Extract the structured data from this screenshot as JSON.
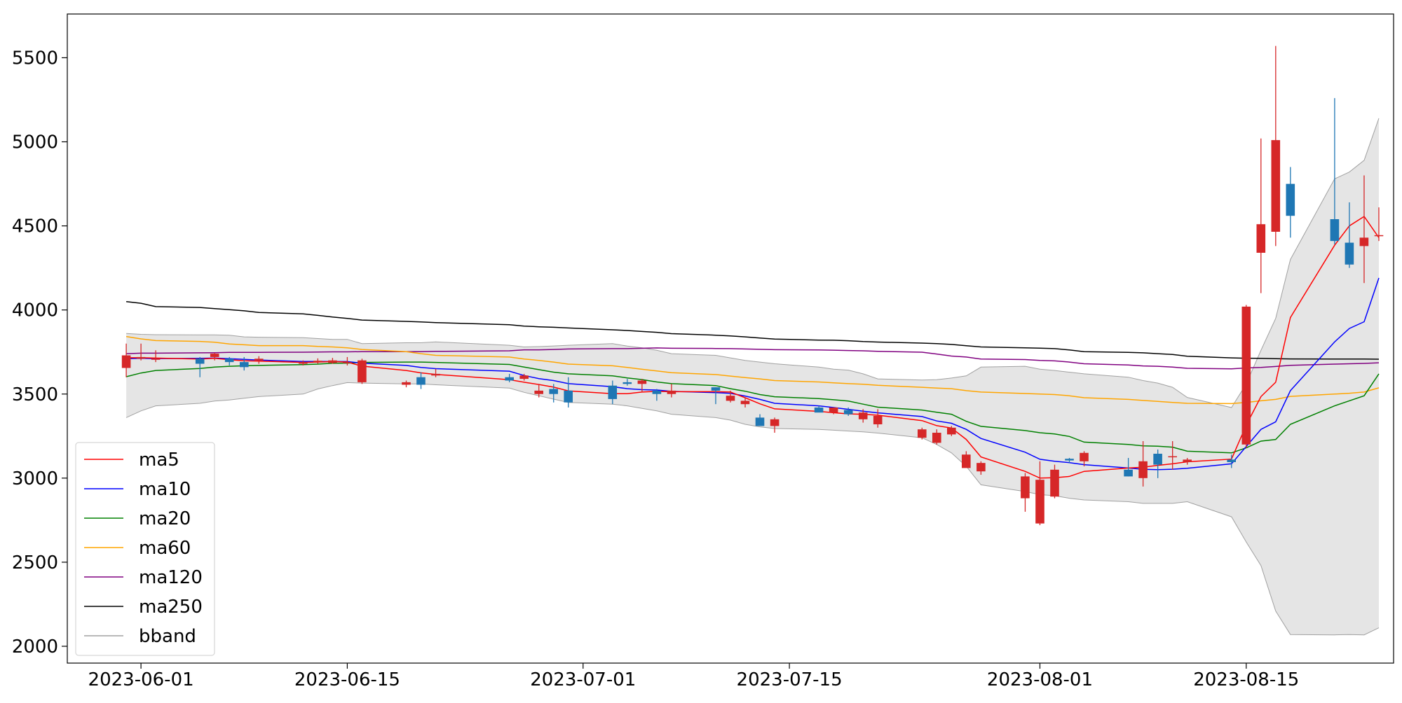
{
  "chart_data": {
    "type": "candlestick",
    "title": "",
    "xlabel": "",
    "ylabel": "",
    "x_ticks": [
      "2023-06-01",
      "2023-06-15",
      "2023-07-01",
      "2023-07-15",
      "2023-08-01",
      "2023-08-15"
    ],
    "y_ticks": [
      2000,
      2500,
      3000,
      3500,
      4000,
      4500,
      5000,
      5500
    ],
    "ylim": [
      1900,
      5760
    ],
    "xlim": [
      "2023-05-27",
      "2023-08-25"
    ],
    "grid": false,
    "legend_position": "bottom-left",
    "colors": {
      "up": "#d62728",
      "down": "#1f77b4",
      "ma5": "#ff0000",
      "ma10": "#0000ff",
      "ma20": "#008000",
      "ma60": "#ffa500",
      "ma120": "#800080",
      "ma250": "#000000",
      "bband": "#a0a0a0",
      "band_fill": "#e5e5e5"
    },
    "legend": [
      {
        "key": "ma5",
        "label": "ma5"
      },
      {
        "key": "ma10",
        "label": "ma10"
      },
      {
        "key": "ma20",
        "label": "ma20"
      },
      {
        "key": "ma60",
        "label": "ma60"
      },
      {
        "key": "ma120",
        "label": "ma120"
      },
      {
        "key": "ma250",
        "label": "ma250"
      },
      {
        "key": "bband",
        "label": "bband"
      }
    ],
    "dates": [
      "2023-05-31",
      "2023-06-01",
      "2023-06-02",
      "2023-06-05",
      "2023-06-06",
      "2023-06-07",
      "2023-06-08",
      "2023-06-09",
      "2023-06-12",
      "2023-06-13",
      "2023-06-14",
      "2023-06-15",
      "2023-06-16",
      "2023-06-19",
      "2023-06-20",
      "2023-06-21",
      "2023-06-26",
      "2023-06-27",
      "2023-06-28",
      "2023-06-29",
      "2023-06-30",
      "2023-07-03",
      "2023-07-04",
      "2023-07-05",
      "2023-07-06",
      "2023-07-07",
      "2023-07-10",
      "2023-07-11",
      "2023-07-12",
      "2023-07-13",
      "2023-07-14",
      "2023-07-17",
      "2023-07-18",
      "2023-07-19",
      "2023-07-20",
      "2023-07-21",
      "2023-07-24",
      "2023-07-25",
      "2023-07-26",
      "2023-07-27",
      "2023-07-28",
      "2023-07-31",
      "2023-08-01",
      "2023-08-02",
      "2023-08-03",
      "2023-08-04",
      "2023-08-07",
      "2023-08-08",
      "2023-08-09",
      "2023-08-10",
      "2023-08-11",
      "2023-08-14",
      "2023-08-15",
      "2023-08-16",
      "2023-08-17",
      "2023-08-18",
      "2023-08-21",
      "2023-08-22",
      "2023-08-23",
      "2023-08-24"
    ],
    "open": [
      3655,
      3710,
      3710,
      3710,
      3720,
      3710,
      3690,
      3700,
      3680,
      3688,
      3685,
      3690,
      3570,
      3555,
      3600,
      3610,
      3600,
      3590,
      3500,
      3530,
      3520,
      3550,
      3570,
      3560,
      3520,
      3500,
      3540,
      3460,
      3440,
      3360,
      3310,
      3420,
      3390,
      3405,
      3350,
      3320,
      3240,
      3210,
      3260,
      3060,
      3040,
      2880,
      2730,
      2890,
      3115,
      3100,
      3050,
      3000,
      3145,
      3130,
      3095,
      3110,
      3200,
      4340,
      4465,
      4750,
      4540,
      4400,
      4380,
      4440
    ],
    "close": [
      3730,
      3720,
      3710,
      3680,
      3740,
      3690,
      3660,
      3710,
      3690,
      3698,
      3700,
      3690,
      3700,
      3570,
      3555,
      3620,
      3580,
      3610,
      3520,
      3500,
      3450,
      3470,
      3560,
      3580,
      3500,
      3520,
      3520,
      3490,
      3460,
      3310,
      3350,
      3390,
      3420,
      3380,
      3390,
      3370,
      3290,
      3270,
      3300,
      3140,
      3090,
      3010,
      2990,
      3050,
      3105,
      3150,
      3010,
      3100,
      3080,
      3130,
      3110,
      3095,
      4020,
      4510,
      5010,
      4560,
      4410,
      4270,
      4430,
      4445
    ],
    "high": [
      3800,
      3800,
      3760,
      3720,
      3745,
      3720,
      3720,
      3725,
      3700,
      3712,
      3715,
      3720,
      3710,
      3580,
      3630,
      3650,
      3620,
      3620,
      3560,
      3560,
      3600,
      3580,
      3590,
      3590,
      3530,
      3560,
      3540,
      3520,
      3480,
      3380,
      3360,
      3430,
      3420,
      3420,
      3410,
      3410,
      3300,
      3290,
      3310,
      3160,
      3100,
      3030,
      3100,
      3080,
      3120,
      3160,
      3120,
      3220,
      3170,
      3220,
      3120,
      3140,
      4030,
      5020,
      5570,
      4850,
      5260,
      4640,
      4800,
      4610
    ],
    "low": [
      3600,
      3700,
      3690,
      3600,
      3700,
      3670,
      3640,
      3680,
      3670,
      3680,
      3680,
      3670,
      3560,
      3540,
      3530,
      3600,
      3570,
      3580,
      3480,
      3450,
      3420,
      3440,
      3550,
      3510,
      3460,
      3480,
      3440,
      3450,
      3420,
      3320,
      3270,
      3400,
      3380,
      3370,
      3330,
      3300,
      3230,
      3200,
      3250,
      3080,
      3020,
      2800,
      2720,
      2880,
      3090,
      3070,
      3010,
      2950,
      3000,
      3050,
      3080,
      3060,
      3180,
      4100,
      4380,
      4430,
      4390,
      4250,
      4160,
      4410
    ],
    "ma5": [
      3716,
      3716,
      3714,
      3708,
      3712,
      3704,
      3698,
      3696,
      3688,
      3690,
      3694,
      3690,
      3666,
      3640,
      3626,
      3617,
      3585,
      3570,
      3557,
      3541,
      3519,
      3502,
      3502,
      3512,
      3516,
      3514,
      3514,
      3512,
      3478,
      3442,
      3412,
      3397,
      3389,
      3382,
      3380,
      3374,
      3342,
      3312,
      3298,
      3230,
      3126,
      3040,
      3000,
      3002,
      3010,
      3040,
      3060,
      3065,
      3076,
      3085,
      3097,
      3113,
      3315,
      3485,
      3570,
      3955,
      4385,
      4500,
      4556,
      4430
    ],
    "ma10": [
      3710,
      3712,
      3711,
      3712,
      3714,
      3710,
      3706,
      3702,
      3694,
      3694,
      3694,
      3693,
      3684,
      3670,
      3658,
      3651,
      3636,
      3610,
      3592,
      3580,
      3562,
      3544,
      3532,
      3526,
      3524,
      3516,
      3508,
      3504,
      3488,
      3468,
      3445,
      3430,
      3420,
      3409,
      3398,
      3388,
      3366,
      3340,
      3326,
      3290,
      3236,
      3154,
      3112,
      3100,
      3092,
      3080,
      3060,
      3052,
      3050,
      3053,
      3059,
      3085,
      3188,
      3290,
      3335,
      3520,
      3810,
      3890,
      3930,
      4190
    ],
    "ma20": [
      3603,
      3625,
      3640,
      3652,
      3660,
      3665,
      3668,
      3670,
      3675,
      3678,
      3683,
      3684,
      3688,
      3690,
      3690,
      3688,
      3676,
      3660,
      3645,
      3630,
      3620,
      3608,
      3596,
      3586,
      3572,
      3562,
      3550,
      3532,
      3517,
      3497,
      3484,
      3473,
      3466,
      3458,
      3440,
      3422,
      3405,
      3392,
      3380,
      3338,
      3308,
      3283,
      3270,
      3263,
      3248,
      3214,
      3200,
      3192,
      3190,
      3184,
      3160,
      3150,
      3180,
      3220,
      3230,
      3320,
      3430,
      3460,
      3490,
      3620
    ],
    "ma60": [
      3842,
      3828,
      3818,
      3813,
      3808,
      3798,
      3793,
      3788,
      3788,
      3783,
      3780,
      3775,
      3765,
      3752,
      3740,
      3730,
      3720,
      3708,
      3700,
      3690,
      3678,
      3668,
      3658,
      3647,
      3637,
      3627,
      3616,
      3607,
      3598,
      3590,
      3580,
      3572,
      3567,
      3562,
      3558,
      3552,
      3540,
      3535,
      3532,
      3520,
      3512,
      3503,
      3500,
      3497,
      3490,
      3478,
      3468,
      3462,
      3456,
      3450,
      3445,
      3443,
      3450,
      3460,
      3468,
      3486,
      3500,
      3505,
      3512,
      3537
    ],
    "ma120": [
      3740,
      3743,
      3743,
      3745,
      3746,
      3748,
      3748,
      3748,
      3749,
      3750,
      3751,
      3751,
      3752,
      3752,
      3752,
      3754,
      3757,
      3763,
      3763,
      3765,
      3768,
      3770,
      3770,
      3772,
      3774,
      3772,
      3771,
      3770,
      3768,
      3766,
      3764,
      3762,
      3761,
      3759,
      3757,
      3754,
      3749,
      3738,
      3726,
      3720,
      3708,
      3705,
      3700,
      3697,
      3690,
      3680,
      3673,
      3667,
      3665,
      3660,
      3653,
      3650,
      3655,
      3658,
      3664,
      3671,
      3678,
      3680,
      3682,
      3686
    ],
    "ma250": [
      4050,
      4040,
      4020,
      4015,
      4008,
      4002,
      3995,
      3985,
      3977,
      3968,
      3958,
      3950,
      3940,
      3932,
      3929,
      3925,
      3912,
      3904,
      3900,
      3897,
      3893,
      3882,
      3878,
      3872,
      3867,
      3859,
      3850,
      3846,
      3840,
      3833,
      3827,
      3821,
      3820,
      3817,
      3812,
      3809,
      3803,
      3800,
      3795,
      3787,
      3780,
      3775,
      3773,
      3770,
      3762,
      3752,
      3748,
      3745,
      3740,
      3735,
      3725,
      3715,
      3713,
      3712,
      3710,
      3709,
      3708,
      3708,
      3708,
      3707
    ],
    "bb_upper": [
      3860,
      3855,
      3853,
      3852,
      3852,
      3850,
      3840,
      3838,
      3835,
      3830,
      3825,
      3825,
      3800,
      3805,
      3805,
      3810,
      3790,
      3780,
      3782,
      3786,
      3790,
      3800,
      3785,
      3775,
      3760,
      3740,
      3730,
      3715,
      3700,
      3690,
      3680,
      3660,
      3648,
      3642,
      3620,
      3590,
      3583,
      3585,
      3595,
      3608,
      3660,
      3665,
      3648,
      3640,
      3630,
      3620,
      3600,
      3580,
      3565,
      3540,
      3480,
      3420,
      3560,
      3760,
      3950,
      4300,
      4780,
      4820,
      4890,
      5140
    ],
    "bb_lower": [
      3360,
      3400,
      3430,
      3445,
      3458,
      3465,
      3475,
      3485,
      3500,
      3530,
      3550,
      3568,
      3565,
      3560,
      3560,
      3555,
      3535,
      3510,
      3490,
      3470,
      3450,
      3440,
      3430,
      3415,
      3400,
      3380,
      3360,
      3345,
      3320,
      3305,
      3295,
      3290,
      3285,
      3280,
      3275,
      3268,
      3240,
      3200,
      3150,
      3070,
      2960,
      2920,
      2902,
      2895,
      2880,
      2870,
      2860,
      2850,
      2850,
      2850,
      2860,
      2770,
      2620,
      2480,
      2210,
      2070,
      2068,
      2070,
      2068,
      2110
    ]
  }
}
